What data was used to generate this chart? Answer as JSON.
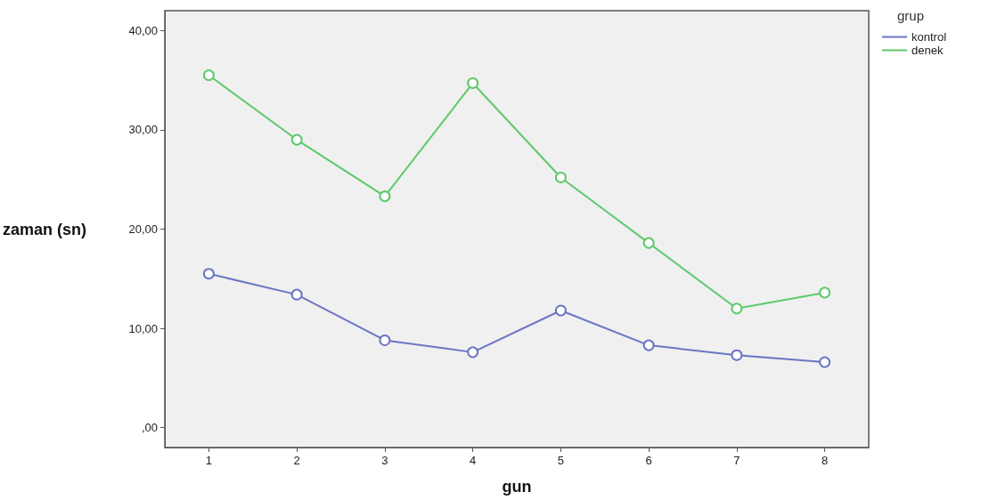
{
  "chart_data": {
    "type": "line",
    "xlabel": "gun",
    "ylabel": "zaman (sn)",
    "legend_title": "grup",
    "categories": [
      "1",
      "2",
      "3",
      "4",
      "5",
      "6",
      "7",
      "8"
    ],
    "series": [
      {
        "name": "kontrol",
        "color": "#6a76c4",
        "values": [
          15.5,
          13.4,
          8.8,
          7.6,
          11.8,
          8.3,
          7.3,
          6.6
        ]
      },
      {
        "name": "denek",
        "color": "#5ec96a",
        "values": [
          35.5,
          29.0,
          23.3,
          34.7,
          25.2,
          18.6,
          12.0,
          13.6
        ]
      }
    ],
    "ylim": [
      -2,
      42
    ],
    "yticks": [
      {
        "value": 0,
        "label": ",00"
      },
      {
        "value": 10,
        "label": "10,00"
      },
      {
        "value": 20,
        "label": "20,00"
      },
      {
        "value": 30,
        "label": "30,00"
      },
      {
        "value": 40,
        "label": "40,00"
      }
    ],
    "grid": false,
    "legend": "top right",
    "marker": "circle",
    "line_style": "solid"
  }
}
